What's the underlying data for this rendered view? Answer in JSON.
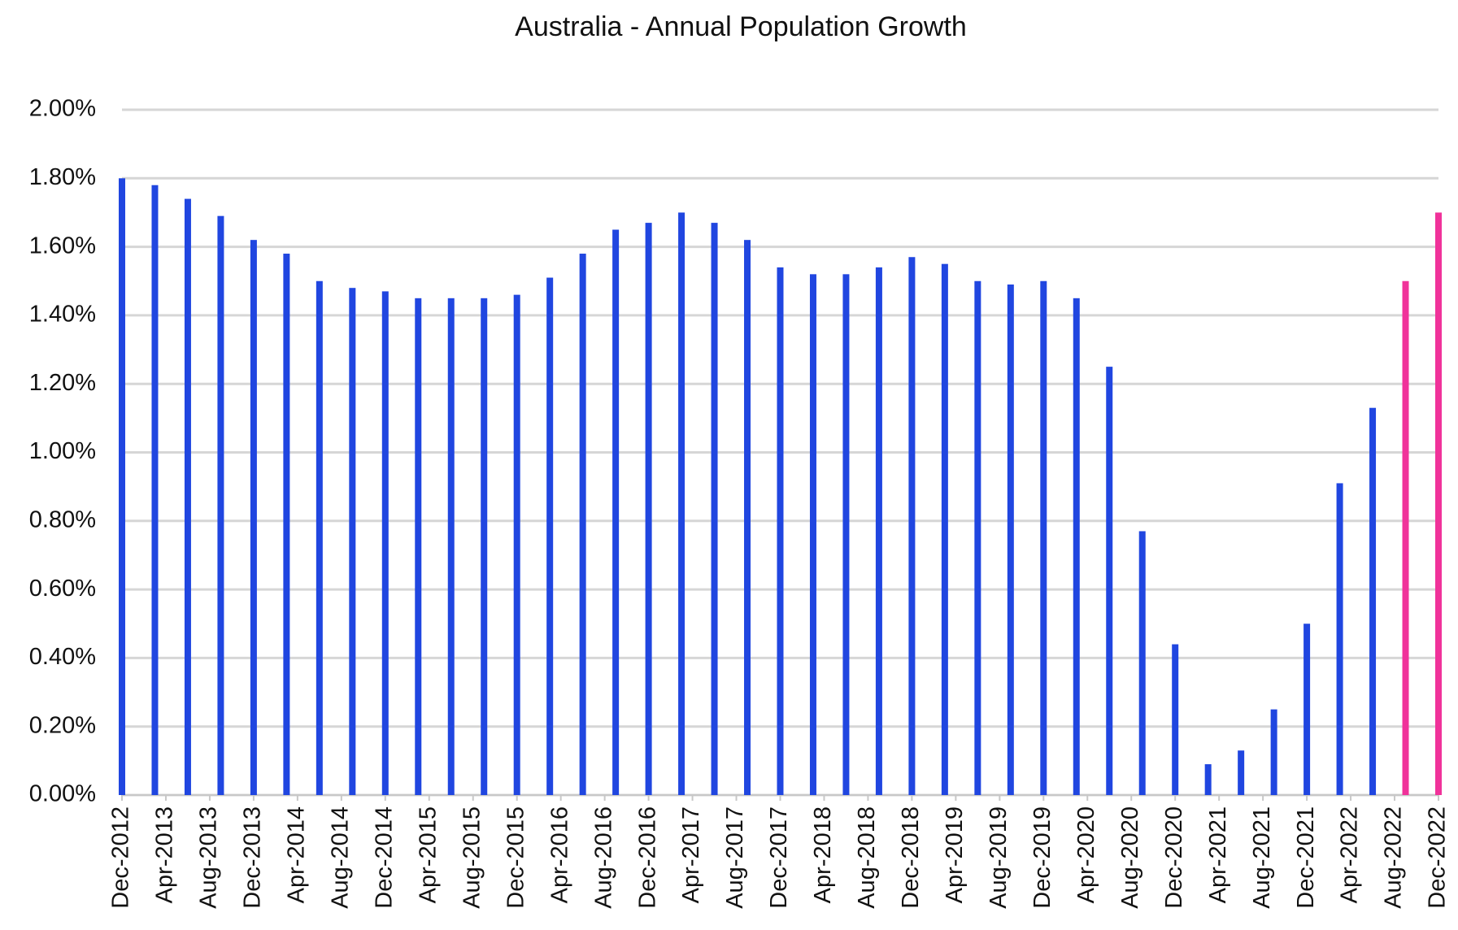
{
  "chart_data": {
    "type": "bar",
    "title": "Australia - Annual Population Growth",
    "x": [
      "2012-12",
      "2013-03",
      "2013-06",
      "2013-09",
      "2013-12",
      "2014-03",
      "2014-06",
      "2014-09",
      "2014-12",
      "2015-03",
      "2015-06",
      "2015-09",
      "2015-12",
      "2016-03",
      "2016-06",
      "2016-09",
      "2016-12",
      "2017-03",
      "2017-06",
      "2017-09",
      "2017-12",
      "2018-03",
      "2018-06",
      "2018-09",
      "2018-12",
      "2019-03",
      "2019-06",
      "2019-09",
      "2019-12",
      "2020-03",
      "2020-06",
      "2020-09",
      "2020-12",
      "2021-03",
      "2021-06",
      "2021-09",
      "2021-12",
      "2022-03",
      "2022-06",
      "2022-09",
      "2022-12"
    ],
    "values": [
      1.8,
      1.78,
      1.74,
      1.69,
      1.62,
      1.58,
      1.5,
      1.48,
      1.47,
      1.45,
      1.45,
      1.45,
      1.46,
      1.51,
      1.58,
      1.65,
      1.67,
      1.7,
      1.67,
      1.62,
      1.54,
      1.52,
      1.52,
      1.54,
      1.57,
      1.55,
      1.5,
      1.49,
      1.5,
      1.45,
      1.25,
      0.77,
      0.44,
      0.09,
      0.13,
      0.25,
      0.5,
      0.91,
      1.13,
      1.5,
      1.7
    ],
    "colors": [
      "#2046e0",
      "#2046e0",
      "#2046e0",
      "#2046e0",
      "#2046e0",
      "#2046e0",
      "#2046e0",
      "#2046e0",
      "#2046e0",
      "#2046e0",
      "#2046e0",
      "#2046e0",
      "#2046e0",
      "#2046e0",
      "#2046e0",
      "#2046e0",
      "#2046e0",
      "#2046e0",
      "#2046e0",
      "#2046e0",
      "#2046e0",
      "#2046e0",
      "#2046e0",
      "#2046e0",
      "#2046e0",
      "#2046e0",
      "#2046e0",
      "#2046e0",
      "#2046e0",
      "#2046e0",
      "#2046e0",
      "#2046e0",
      "#2046e0",
      "#2046e0",
      "#2046e0",
      "#2046e0",
      "#2046e0",
      "#2046e0",
      "#2046e0",
      "#f0329a",
      "#f0329a"
    ],
    "xlim": [
      "2012-12",
      "2022-12"
    ],
    "xticks": [
      {
        "value": "2012-12",
        "label": "Dec-2012"
      },
      {
        "value": "2013-04",
        "label": "Apr-2013"
      },
      {
        "value": "2013-08",
        "label": "Aug-2013"
      },
      {
        "value": "2013-12",
        "label": "Dec-2013"
      },
      {
        "value": "2014-04",
        "label": "Apr-2014"
      },
      {
        "value": "2014-08",
        "label": "Aug-2014"
      },
      {
        "value": "2014-12",
        "label": "Dec-2014"
      },
      {
        "value": "2015-04",
        "label": "Apr-2015"
      },
      {
        "value": "2015-08",
        "label": "Aug-2015"
      },
      {
        "value": "2015-12",
        "label": "Dec-2015"
      },
      {
        "value": "2016-04",
        "label": "Apr-2016"
      },
      {
        "value": "2016-08",
        "label": "Aug-2016"
      },
      {
        "value": "2016-12",
        "label": "Dec-2016"
      },
      {
        "value": "2017-04",
        "label": "Apr-2017"
      },
      {
        "value": "2017-08",
        "label": "Aug-2017"
      },
      {
        "value": "2017-12",
        "label": "Dec-2017"
      },
      {
        "value": "2018-04",
        "label": "Apr-2018"
      },
      {
        "value": "2018-08",
        "label": "Aug-2018"
      },
      {
        "value": "2018-12",
        "label": "Dec-2018"
      },
      {
        "value": "2019-04",
        "label": "Apr-2019"
      },
      {
        "value": "2019-08",
        "label": "Aug-2019"
      },
      {
        "value": "2019-12",
        "label": "Dec-2019"
      },
      {
        "value": "2020-04",
        "label": "Apr-2020"
      },
      {
        "value": "2020-08",
        "label": "Aug-2020"
      },
      {
        "value": "2020-12",
        "label": "Dec-2020"
      },
      {
        "value": "2021-04",
        "label": "Apr-2021"
      },
      {
        "value": "2021-08",
        "label": "Aug-2021"
      },
      {
        "value": "2021-12",
        "label": "Dec-2021"
      },
      {
        "value": "2022-04",
        "label": "Apr-2022"
      },
      {
        "value": "2022-08",
        "label": "Aug-2022"
      },
      {
        "value": "2022-12",
        "label": "Dec-2022"
      }
    ],
    "ylim": [
      0,
      2
    ],
    "yticks": [
      {
        "value": 0,
        "label": "0.00%"
      },
      {
        "value": 0.2,
        "label": "0.20%"
      },
      {
        "value": 0.4,
        "label": "0.40%"
      },
      {
        "value": 0.6,
        "label": "0.60%"
      },
      {
        "value": 0.8,
        "label": "0.80%"
      },
      {
        "value": 1,
        "label": "1.00%"
      },
      {
        "value": 1.2,
        "label": "1.20%"
      },
      {
        "value": 1.4,
        "label": "1.40%"
      },
      {
        "value": 1.6,
        "label": "1.60%"
      },
      {
        "value": 1.8,
        "label": "1.80%"
      },
      {
        "value": 2,
        "label": "2.00%"
      }
    ],
    "grid": true
  }
}
